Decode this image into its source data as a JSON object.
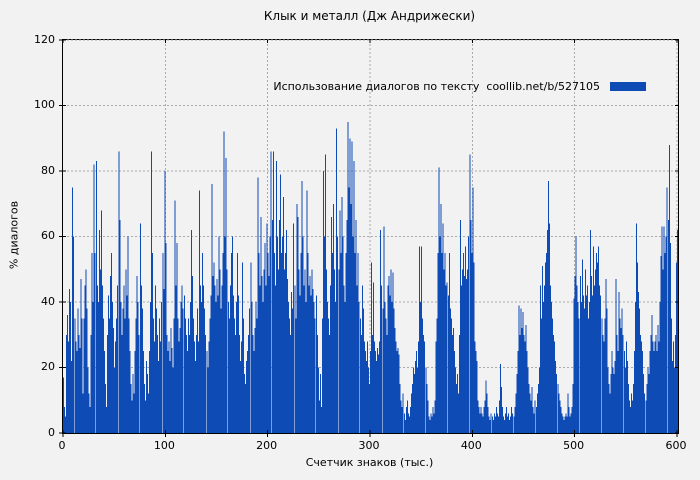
{
  "window": {
    "title": "Клык и металл (Дж Андрижески)"
  },
  "colors": {
    "background": "#f2f2f2",
    "bar": "#0f4bb4",
    "grid": "#aaaaaa",
    "border": "#000000",
    "text": "#000000"
  },
  "chart_data": {
    "type": "bar",
    "title": "Клык и металл (Дж Андрижески)",
    "legend": "Использование диалогов по тексту  coollib.net/b/527105",
    "legend_position": "top-right",
    "xlabel": "Счетчик знаков (тыс.)",
    "ylabel": "% диалогов",
    "xlim": [
      0,
      601
    ],
    "ylim": [
      0,
      120
    ],
    "xticks": [
      0,
      100,
      200,
      300,
      400,
      500,
      600
    ],
    "yticks": [
      0,
      20,
      40,
      60,
      80,
      100,
      120
    ],
    "grid": true,
    "x_step": 1,
    "x_meaning": "character counter (thousands)",
    "y_meaning": "% of dialogs",
    "values": [
      17,
      8,
      5,
      30,
      36,
      28,
      44,
      40,
      22,
      75,
      60,
      35,
      28,
      25,
      38,
      30,
      26,
      47,
      35,
      12,
      35,
      45,
      50,
      38,
      20,
      12,
      8,
      30,
      55,
      40,
      82,
      55,
      83,
      45,
      40,
      62,
      50,
      68,
      45,
      35,
      25,
      15,
      8,
      30,
      42,
      35,
      48,
      55,
      40,
      32,
      20,
      28,
      35,
      45,
      86,
      65,
      40,
      30,
      38,
      45,
      35,
      50,
      42,
      60,
      35,
      25,
      15,
      10,
      18,
      12,
      25,
      35,
      48,
      40,
      30,
      64,
      45,
      38,
      25,
      15,
      10,
      22,
      18,
      12,
      25,
      40,
      86,
      55,
      35,
      28,
      45,
      38,
      30,
      22,
      35,
      28,
      40,
      55,
      44,
      80,
      58,
      30,
      25,
      28,
      22,
      32,
      26,
      20,
      35,
      71,
      45,
      58,
      35,
      28,
      32,
      40,
      45,
      38,
      42,
      35,
      30,
      25,
      35,
      30,
      40,
      62,
      48,
      35,
      28,
      22,
      30,
      38,
      28,
      74,
      45,
      40,
      55,
      45,
      38,
      30,
      25,
      20,
      28,
      35,
      42,
      76,
      48,
      52,
      45,
      40,
      47,
      42,
      60,
      50,
      38,
      45,
      55,
      92,
      60,
      84,
      50,
      40,
      35,
      45,
      55,
      60,
      42,
      35,
      30,
      40,
      55,
      42,
      30,
      22,
      28,
      52,
      35,
      18,
      15,
      22,
      25,
      30,
      38,
      52,
      40,
      30,
      25,
      32,
      40,
      35,
      78,
      55,
      45,
      66,
      48,
      40,
      50,
      58,
      45,
      64,
      55,
      48,
      60,
      86,
      65,
      86,
      55,
      45,
      83,
      60,
      50,
      65,
      79,
      55,
      60,
      72,
      50,
      55,
      62,
      47,
      40,
      35,
      30,
      43,
      38,
      64,
      45,
      35,
      70,
      66,
      50,
      42,
      55,
      77,
      60,
      45,
      50,
      40,
      74,
      55,
      45,
      48,
      42,
      50,
      44,
      40,
      35,
      42,
      30,
      20,
      10,
      18,
      8,
      35,
      80,
      60,
      85,
      50,
      40,
      35,
      30,
      45,
      66,
      55,
      70,
      50,
      40,
      93,
      60,
      50,
      68,
      55,
      72,
      60,
      45,
      40,
      55,
      65,
      95,
      75,
      90,
      70,
      89,
      60,
      83,
      55,
      65,
      45,
      55,
      40,
      35,
      30,
      45,
      38,
      28,
      25,
      22,
      28,
      20,
      15,
      25,
      52,
      30,
      46,
      28,
      25,
      22,
      26,
      24,
      28,
      62,
      45,
      38,
      63,
      40,
      35,
      30,
      45,
      48,
      42,
      50,
      40,
      49,
      38,
      32,
      28,
      25,
      26,
      24,
      15,
      10,
      8,
      12,
      6,
      4,
      8,
      10,
      6,
      5,
      8,
      12,
      15,
      20,
      18,
      22,
      25,
      20,
      28,
      57,
      40,
      57,
      35,
      30,
      28,
      20,
      15,
      10,
      5,
      4,
      6,
      5,
      8,
      6,
      10,
      28,
      35,
      55,
      81,
      60,
      70,
      55,
      64,
      50,
      55,
      45,
      46,
      42,
      55,
      38,
      35,
      30,
      32,
      25,
      20,
      15,
      18,
      12,
      30,
      65,
      45,
      50,
      55,
      48,
      57,
      47,
      50,
      60,
      85,
      65,
      55,
      75,
      52,
      28,
      25,
      22,
      10,
      8,
      6,
      8,
      6,
      5,
      8,
      10,
      16,
      12,
      8,
      5,
      4,
      6,
      5,
      4,
      6,
      5,
      8,
      6,
      5,
      10,
      21,
      14,
      8,
      5,
      4,
      6,
      8,
      5,
      6,
      4,
      5,
      8,
      6,
      5,
      8,
      12,
      18,
      25,
      39,
      30,
      38,
      32,
      37,
      30,
      28,
      33,
      25,
      20,
      15,
      12,
      10,
      14,
      8,
      6,
      10,
      8,
      12,
      15,
      20,
      45,
      35,
      51,
      40,
      45,
      52,
      55,
      62,
      77,
      64,
      45,
      40,
      35,
      30,
      28,
      22,
      18,
      15,
      12,
      10,
      8,
      6,
      5,
      4,
      5,
      6,
      5,
      12,
      8,
      5,
      6,
      8,
      15,
      41,
      48,
      60,
      45,
      40,
      35,
      48,
      40,
      53,
      42,
      38,
      50,
      42,
      45,
      35,
      40,
      62,
      48,
      42,
      57,
      45,
      50,
      55,
      52,
      57,
      45,
      42,
      35,
      30,
      28,
      35,
      47,
      38,
      20,
      15,
      12,
      18,
      25,
      20,
      18,
      22,
      47,
      30,
      25,
      43,
      35,
      32,
      38,
      30,
      25,
      20,
      28,
      22,
      15,
      10,
      8,
      12,
      10,
      15,
      25,
      40,
      64,
      52,
      43,
      38,
      30,
      28,
      25,
      18,
      12,
      10,
      15,
      20,
      18,
      25,
      30,
      36,
      28,
      25,
      28,
      30,
      25,
      33,
      28,
      40,
      54,
      63,
      50,
      63,
      55,
      60,
      75,
      65,
      88,
      58,
      35,
      22,
      28,
      20,
      30,
      52,
      62
    ]
  }
}
